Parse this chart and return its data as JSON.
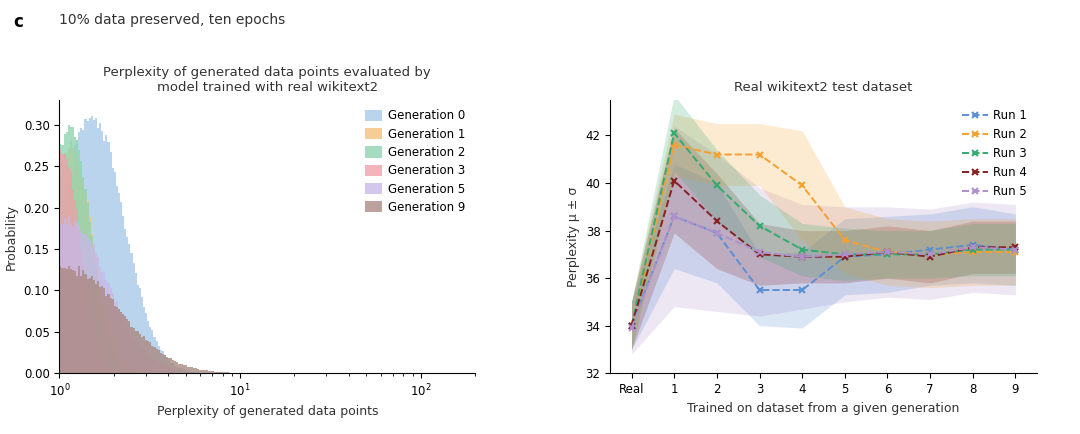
{
  "panel_label": "c",
  "panel_subtitle": "10% data preserved, ten epochs",
  "left_title": "Perplexity of generated data points evaluated by\nmodel trained with real wikitext2",
  "left_xlabel": "Perplexity of generated data points",
  "left_ylabel": "Probability",
  "left_xlim": [
    1.0,
    200.0
  ],
  "left_ylim": [
    0,
    0.33
  ],
  "left_yticks": [
    0,
    0.05,
    0.1,
    0.15,
    0.2,
    0.25,
    0.3
  ],
  "hist_generations": [
    0,
    1,
    2,
    3,
    5,
    9
  ],
  "hist_colors": [
    "#a8c8e8",
    "#f5c07a",
    "#8dd4b0",
    "#f0a0a8",
    "#c8b8e8",
    "#aa8880"
  ],
  "legend_labels_left": [
    "Generation 0",
    "Generation 1",
    "Generation 2",
    "Generation 3",
    "Generation 5",
    "Generation 9"
  ],
  "gen_params": {
    "0": {
      "mu": 0.58,
      "sigma": 0.4,
      "peak": 0.31
    },
    "1": {
      "mu": 0.22,
      "sigma": 0.28,
      "peak": 0.28
    },
    "2": {
      "mu": 0.2,
      "sigma": 0.26,
      "peak": 0.3
    },
    "3": {
      "mu": 0.1,
      "sigma": 0.22,
      "peak": 0.27
    },
    "5": {
      "mu": 0.35,
      "sigma": 0.5,
      "peak": 0.19
    },
    "9": {
      "mu": 0.55,
      "sigma": 0.65,
      "peak": 0.13
    }
  },
  "right_title": "Real wikitext2 test dataset",
  "right_xlabel": "Trained on dataset from a given generation",
  "right_ylabel": "Perplexity μ ± σ",
  "right_ylim": [
    32,
    43.5
  ],
  "right_yticks": [
    32,
    34,
    36,
    38,
    40,
    42
  ],
  "right_xticks": [
    "Real",
    "1",
    "2",
    "3",
    "4",
    "5",
    "6",
    "7",
    "8",
    "9"
  ],
  "runs": {
    "Run 1": {
      "color": "#5b8fd4",
      "mean": [
        34.0,
        38.6,
        37.9,
        35.5,
        35.5,
        36.9,
        37.0,
        37.2,
        37.4,
        37.2
      ],
      "sigma": [
        1.0,
        2.2,
        2.1,
        1.5,
        1.6,
        1.6,
        1.6,
        1.5,
        1.6,
        1.5
      ]
    },
    "Run 2": {
      "color": "#f5a030",
      "mean": [
        34.0,
        41.6,
        41.2,
        41.2,
        39.9,
        37.6,
        37.1,
        37.0,
        37.1,
        37.1
      ],
      "sigma": [
        1.0,
        1.3,
        1.3,
        1.3,
        2.3,
        1.4,
        1.4,
        1.4,
        1.4,
        1.4
      ]
    },
    "Run 3": {
      "color": "#35aa70",
      "mean": [
        34.0,
        42.1,
        39.9,
        38.2,
        37.2,
        37.0,
        37.0,
        37.0,
        37.2,
        37.2
      ],
      "sigma": [
        1.0,
        1.6,
        1.5,
        1.3,
        1.1,
        1.1,
        1.0,
        1.0,
        1.1,
        1.1
      ]
    },
    "Run 4": {
      "color": "#882222",
      "mean": [
        34.0,
        40.1,
        38.4,
        37.0,
        36.9,
        36.9,
        37.1,
        36.9,
        37.3,
        37.3
      ],
      "sigma": [
        1.0,
        2.2,
        2.0,
        1.3,
        1.1,
        1.1,
        1.1,
        1.1,
        1.1,
        1.1
      ]
    },
    "Run 5": {
      "color": "#b090cc",
      "mean": [
        33.9,
        38.6,
        37.9,
        37.1,
        36.9,
        37.0,
        37.1,
        37.0,
        37.3,
        37.2
      ],
      "sigma": [
        1.1,
        3.8,
        3.3,
        2.7,
        2.2,
        2.0,
        1.9,
        1.9,
        1.9,
        1.9
      ]
    }
  },
  "run_order": [
    "Run 1",
    "Run 2",
    "Run 3",
    "Run 4",
    "Run 5"
  ],
  "background_color": "#ffffff"
}
